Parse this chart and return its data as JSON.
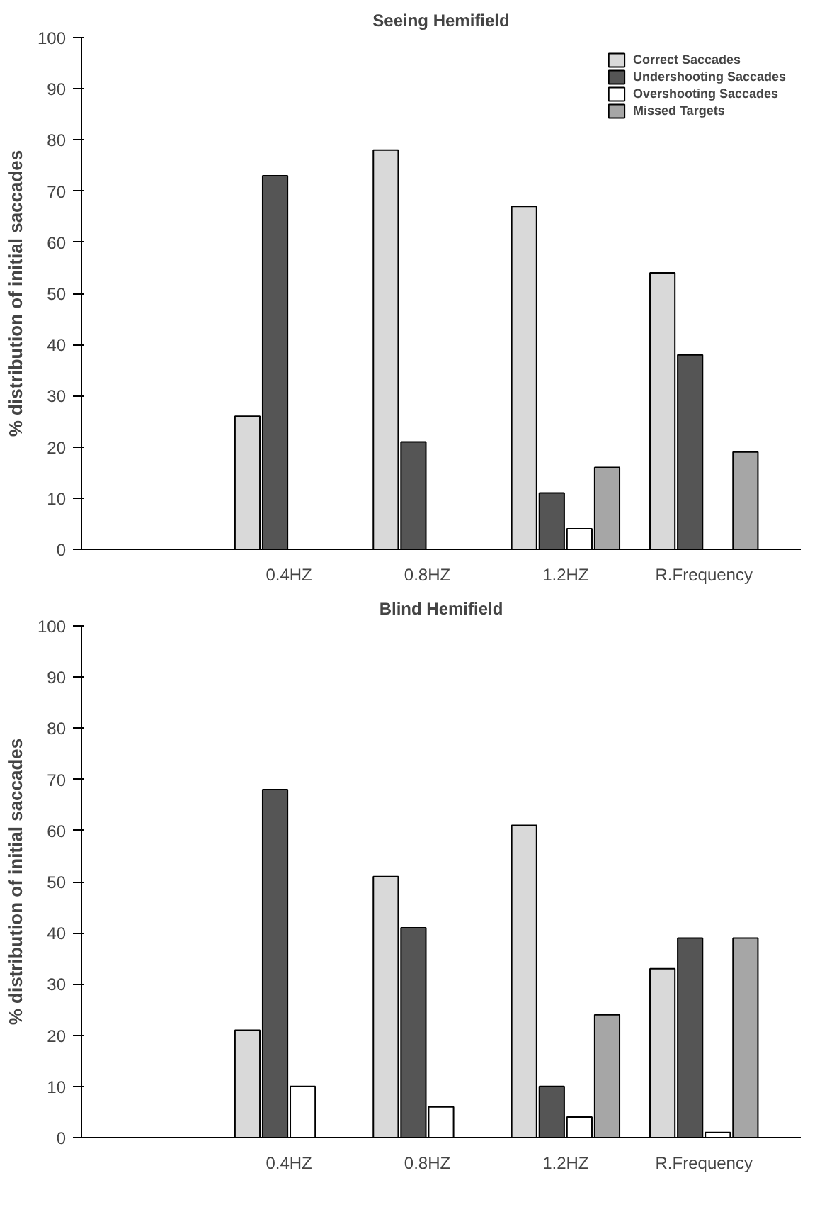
{
  "chart_data": [
    {
      "type": "bar",
      "title": "Seeing Hemifield",
      "ylabel": "% distribution of initial saccades",
      "categories": [
        null,
        "0.4HZ",
        "0.8HZ",
        "1.2HZ",
        "R.Frequency"
      ],
      "series": [
        {
          "name": "Correct Saccades",
          "color": "#d9d9d9",
          "values": [
            null,
            26,
            78,
            67,
            54
          ]
        },
        {
          "name": "Undershooting Saccades",
          "color": "#555555",
          "values": [
            null,
            73,
            21,
            11,
            38
          ]
        },
        {
          "name": "Overshooting Saccades",
          "color": "#ffffff",
          "values": [
            null,
            null,
            null,
            4,
            null
          ]
        },
        {
          "name": "Missed Targets",
          "color": "#a6a6a6",
          "values": [
            null,
            null,
            null,
            16,
            19
          ]
        }
      ],
      "ylim": [
        0,
        100
      ],
      "yticks": [
        0,
        10,
        20,
        30,
        40,
        50,
        60,
        70,
        80,
        90,
        100
      ],
      "legend": "top right"
    },
    {
      "type": "bar",
      "title": "Blind Hemifield",
      "ylabel": "% distribution of initial saccades",
      "categories": [
        null,
        "0.4HZ",
        "0.8HZ",
        "1.2HZ",
        "R.Frequency"
      ],
      "series": [
        {
          "color": "#d9d9d9",
          "values": [
            null,
            21,
            51,
            61,
            33
          ]
        },
        {
          "color": "#555555",
          "values": [
            null,
            68,
            41,
            10,
            39
          ]
        },
        {
          "color": "#ffffff",
          "values": [
            null,
            10,
            6,
            4,
            1
          ]
        },
        {
          "color": "#a6a6a6",
          "values": [
            null,
            null,
            null,
            24,
            39
          ]
        }
      ],
      "ylim": [
        0,
        100
      ],
      "yticks": [
        0,
        10,
        20,
        30,
        40,
        50,
        60,
        70,
        80,
        90,
        100
      ]
    }
  ]
}
